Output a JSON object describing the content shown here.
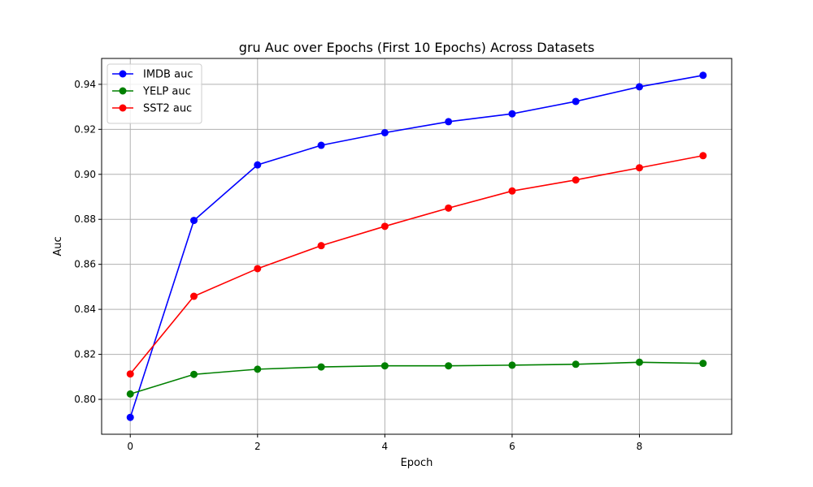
{
  "chart_data": {
    "type": "line",
    "title": "gru Auc over Epochs (First 10 Epochs) Across Datasets",
    "xlabel": "Epoch",
    "ylabel": "Auc",
    "x": [
      0,
      1,
      2,
      3,
      4,
      5,
      6,
      7,
      8,
      9
    ],
    "xlim": [
      -0.45,
      9.45
    ],
    "ylim": [
      0.7845,
      0.9515
    ],
    "xticks": [
      0,
      2,
      4,
      6,
      8
    ],
    "yticks": [
      0.8,
      0.82,
      0.84,
      0.86,
      0.88,
      0.9,
      0.92,
      0.94
    ],
    "xtick_labels": [
      "0",
      "2",
      "4",
      "6",
      "8"
    ],
    "ytick_labels": [
      "0.80",
      "0.82",
      "0.84",
      "0.86",
      "0.88",
      "0.90",
      "0.92",
      "0.94"
    ],
    "grid": true,
    "legend_position": "upper left",
    "series": [
      {
        "name": "IMDB auc",
        "color": "#0000ff",
        "values": [
          0.792,
          0.8795,
          0.9042,
          0.9129,
          0.9185,
          0.9234,
          0.9269,
          0.9324,
          0.9389,
          0.944
        ]
      },
      {
        "name": "YELP auc",
        "color": "#008000",
        "values": [
          0.8024,
          0.8111,
          0.8134,
          0.8144,
          0.8149,
          0.8149,
          0.8152,
          0.8156,
          0.8165,
          0.816
        ]
      },
      {
        "name": "SST2 auc",
        "color": "#ff0000",
        "values": [
          0.8113,
          0.8458,
          0.8581,
          0.8683,
          0.8769,
          0.885,
          0.8926,
          0.8975,
          0.9029,
          0.9083
        ]
      }
    ]
  }
}
